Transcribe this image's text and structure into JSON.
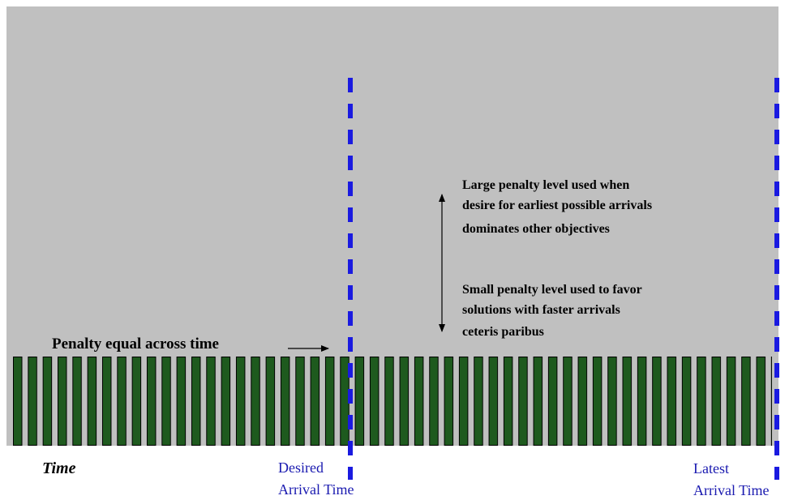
{
  "annotations": {
    "penalty_equal": "Penalty equal across time",
    "large_penalty": [
      "Large penalty level used when",
      "desire for earliest possible arrivals",
      "dominates other objectives"
    ],
    "small_penalty": [
      "Small penalty level used to favor",
      "solutions with faster arrivals",
      "ceteris paribus"
    ]
  },
  "axis": {
    "label": "Time"
  },
  "markers": [
    {
      "lines": [
        "Desired",
        "Arrival Time"
      ]
    },
    {
      "lines": [
        "Latest",
        "Arrival Time"
      ]
    }
  ]
}
